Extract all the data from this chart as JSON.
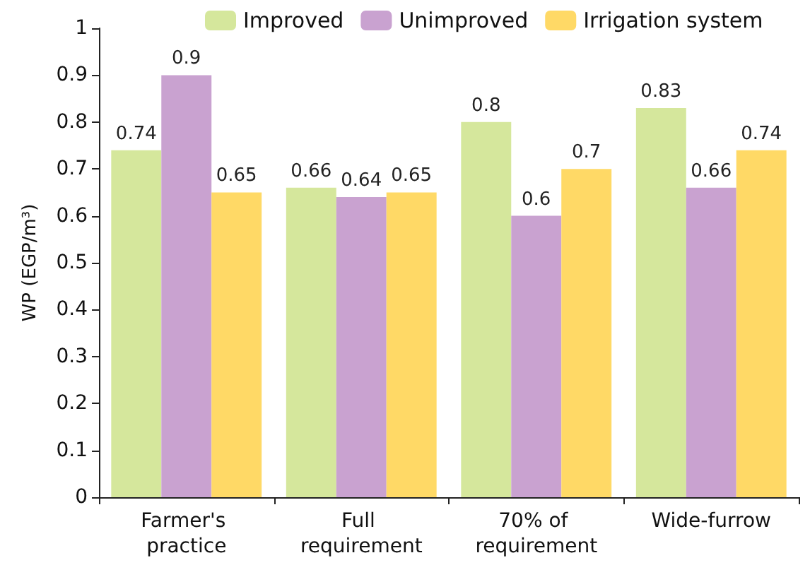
{
  "chart_data": {
    "type": "bar",
    "ylabel": "WP (EGP/m³)",
    "categories": [
      "Farmer's practice",
      "Full requirement",
      "70% of requirement",
      "Wide-furrow"
    ],
    "series": [
      {
        "name": "Improved",
        "color": "#d5e79c",
        "values": [
          0.74,
          0.66,
          0.8,
          0.83
        ]
      },
      {
        "name": "Unimproved",
        "color": "#c9a2d0",
        "values": [
          0.9,
          0.64,
          0.6,
          0.66
        ]
      },
      {
        "name": "Irrigation system",
        "color": "#ffd966",
        "values": [
          0.65,
          0.65,
          0.7,
          0.74
        ]
      }
    ],
    "ylim": [
      0,
      1
    ],
    "yticks": [
      0,
      0.1,
      0.2,
      0.3,
      0.4,
      0.5,
      0.6,
      0.7,
      0.8,
      0.9,
      1
    ],
    "grid": false,
    "legend": "top",
    "data_labels": true
  }
}
